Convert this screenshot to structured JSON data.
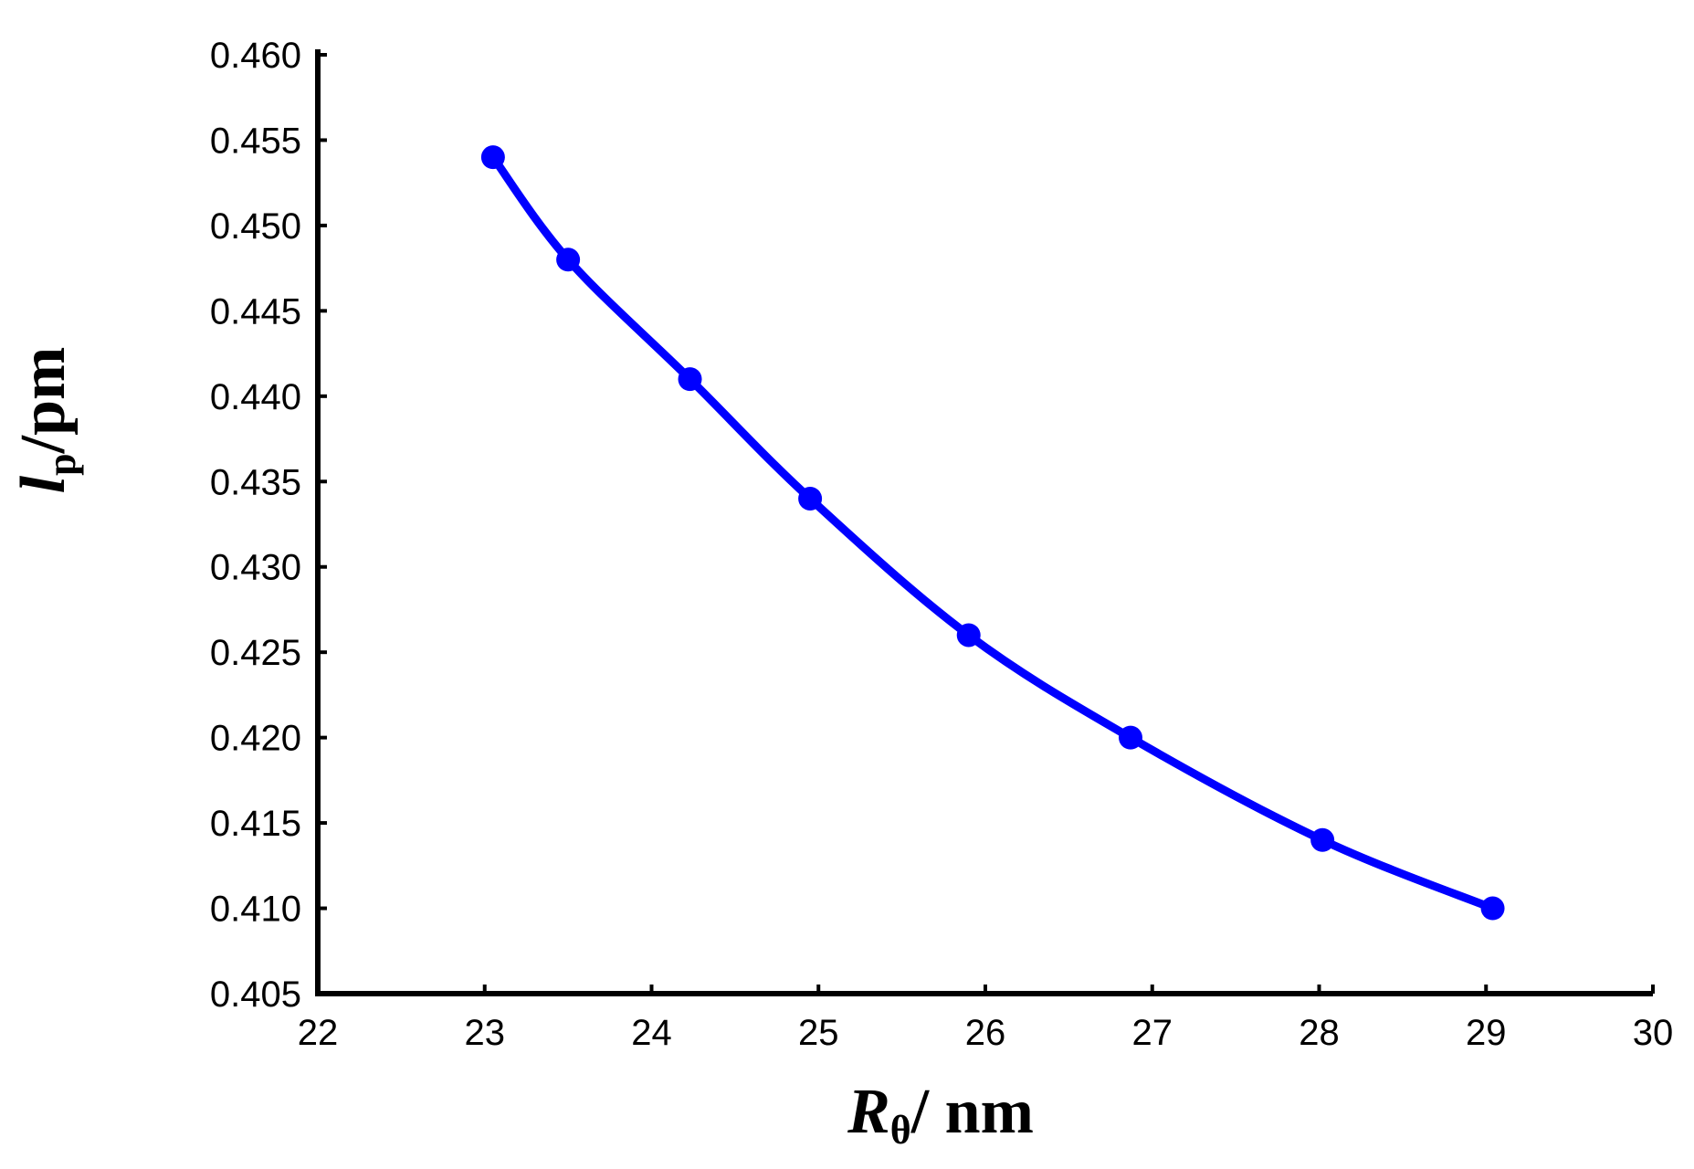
{
  "chart_data": {
    "type": "line",
    "title": "",
    "x": [
      23.05,
      23.5,
      24.23,
      24.95,
      25.9,
      26.87,
      28.02,
      29.04
    ],
    "series": [
      {
        "values": [
          0.454,
          0.448,
          0.441,
          0.434,
          0.426,
          0.42,
          0.414,
          0.41
        ],
        "color": "#0000ff",
        "markers": true
      }
    ],
    "xlabel": {
      "main": "R",
      "sub": "θ",
      "unit": "/ nm"
    },
    "ylabel": {
      "main": "l",
      "sub": "p",
      "unit": "/pm"
    },
    "xlim": [
      22,
      30
    ],
    "ylim": [
      0.405,
      0.46
    ],
    "xticks": [
      "22",
      "23",
      "24",
      "25",
      "26",
      "27",
      "28",
      "29",
      "30"
    ],
    "yticks": [
      "0.405",
      "0.410",
      "0.415",
      "0.420",
      "0.425",
      "0.430",
      "0.435",
      "0.440",
      "0.445",
      "0.450",
      "0.455",
      "0.460"
    ],
    "grid": false,
    "legend": "none"
  }
}
